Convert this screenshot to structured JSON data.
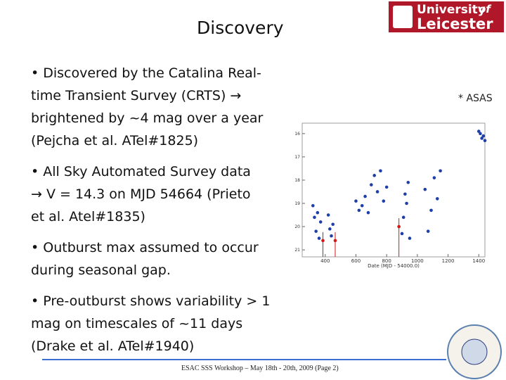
{
  "header": {
    "title": "Discovery",
    "logo": {
      "line1": "University",
      "of": "of",
      "line2": "Leicester"
    }
  },
  "bullets": [
    [
      "• Discovered by the Catalina Real-",
      "time Transient Survey (CRTS) →",
      "brightened by ~4 mag over a year",
      "(Pejcha et al. ATel#1825)"
    ],
    [
      "• All Sky Automated Survey data",
      "→ V = 14.3 on MJD 54664 (Prieto",
      "et al. Atel#1835)"
    ],
    [
      "• Outburst max assumed to occur",
      "during seasonal gap."
    ],
    [
      "• Pre-outburst shows variability > 1",
      "mag on timescales of ~11 days",
      "(Drake et al. ATel#1940)"
    ]
  ],
  "footer": "ESAC SSS Workshop – May 18th - 20th, 2009 (Page 2)",
  "chart_data": {
    "type": "scatter",
    "legend_note": "* ASAS",
    "xlabel": "Date (MJD - 54000.0)",
    "xlim": [
      250,
      1440
    ],
    "ylim": [
      21.3,
      15.55
    ],
    "xticks": [
      400,
      600,
      800,
      1000,
      1200,
      1400
    ],
    "yticks": [
      16,
      17,
      18,
      19,
      20,
      21
    ],
    "series": [
      {
        "name": "CRTS",
        "color": "#1f3fa8",
        "x": [
          320,
          330,
          340,
          350,
          360,
          370,
          420,
          430,
          440,
          450,
          600,
          620,
          640,
          660,
          680,
          700,
          720,
          740,
          760,
          780,
          800,
          900,
          910,
          920,
          930,
          940,
          950,
          1050,
          1070,
          1090,
          1110,
          1130,
          1150,
          1400,
          1410,
          1420,
          1430,
          1440
        ],
        "y": [
          19.1,
          19.6,
          20.2,
          19.4,
          20.5,
          19.8,
          19.5,
          20.1,
          20.4,
          19.9,
          18.9,
          19.3,
          19.1,
          18.7,
          19.4,
          18.2,
          17.8,
          18.5,
          17.6,
          18.9,
          18.3,
          20.3,
          19.6,
          18.6,
          19.0,
          18.1,
          20.5,
          18.4,
          20.2,
          19.3,
          17.9,
          18.8,
          17.6,
          15.9,
          16.0,
          16.2,
          16.1,
          16.3
        ]
      },
      {
        "name": "ASAS",
        "color": "#d01818",
        "x": [
          385,
          465,
          880
        ],
        "y": [
          20.6,
          20.6,
          20.0
        ]
      }
    ]
  }
}
